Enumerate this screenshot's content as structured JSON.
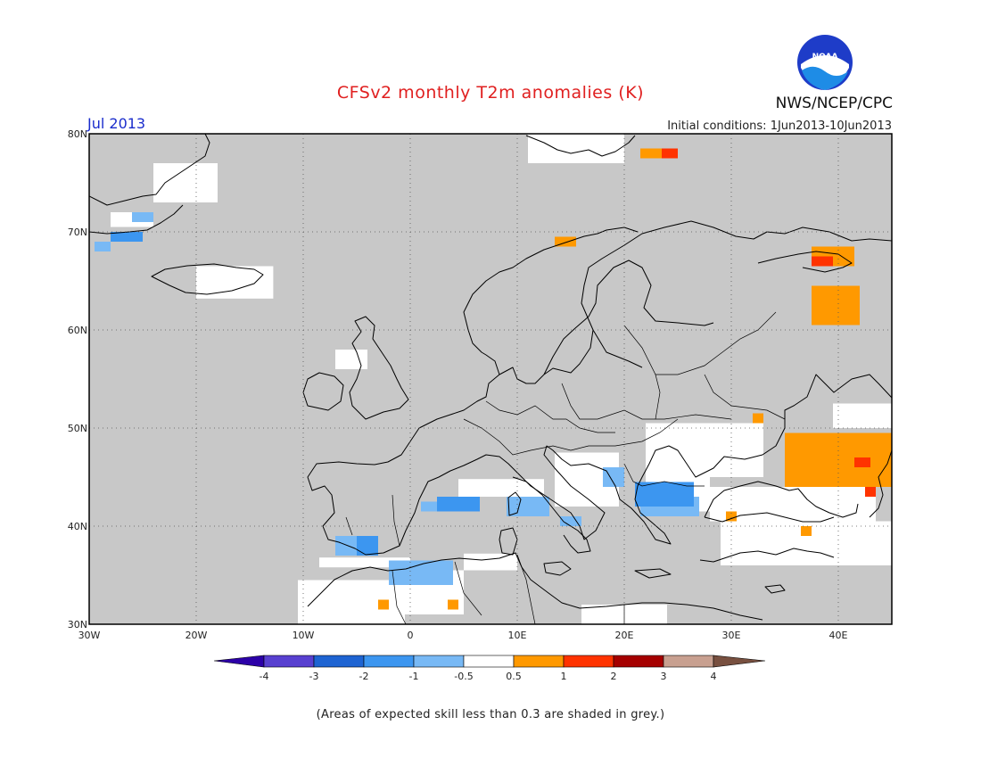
{
  "header": {
    "title": "CFSv2 monthly T2m anomalies (K)",
    "month": "Jul 2013",
    "initial_conditions": "Initial conditions: 1Jun2013-10Jun2013",
    "agency": "NWS/NCEP/CPC",
    "logo_text": "NOAA"
  },
  "map": {
    "region": "Europe",
    "lon_range": [
      -30,
      45
    ],
    "lat_range": [
      30,
      80
    ],
    "lon_labels": [
      "30W",
      "20W",
      "10W",
      "0",
      "10E",
      "20E",
      "30E",
      "40E"
    ],
    "lat_labels": [
      "30N",
      "40N",
      "50N",
      "60N",
      "70N",
      "80N"
    ],
    "background_color": "#c8c8c8",
    "anomaly_fields": [
      {
        "class": "white",
        "lon": [
          -8.5,
          0
        ],
        "lat": [
          35.8,
          36.8
        ]
      },
      {
        "class": "white",
        "lon": [
          -10.5,
          -0.5
        ],
        "lat": [
          30,
          34.5
        ]
      },
      {
        "class": "white",
        "lon": [
          -1,
          5
        ],
        "lat": [
          31,
          35.5
        ]
      },
      {
        "class": "white",
        "lon": [
          5,
          10
        ],
        "lat": [
          35.5,
          37.2
        ]
      },
      {
        "class": "white",
        "lon": [
          4.5,
          12.5
        ],
        "lat": [
          43,
          44.8
        ]
      },
      {
        "class": "white",
        "lon": [
          13.5,
          19.5
        ],
        "lat": [
          42,
          47.5
        ]
      },
      {
        "class": "white",
        "lon": [
          22,
          33
        ],
        "lat": [
          45,
          50.5
        ]
      },
      {
        "class": "white",
        "lon": [
          22,
          28
        ],
        "lat": [
          41.5,
          45
        ]
      },
      {
        "class": "white",
        "lon": [
          28,
          43.5
        ],
        "lat": [
          40.5,
          44
        ]
      },
      {
        "class": "white",
        "lon": [
          29,
          45
        ],
        "lat": [
          36,
          40.5
        ]
      },
      {
        "class": "white",
        "lon": [
          39.5,
          45
        ],
        "lat": [
          50,
          52.5
        ]
      },
      {
        "class": "white",
        "lon": [
          16,
          24
        ],
        "lat": [
          30,
          32
        ]
      },
      {
        "class": "white",
        "lon": [
          -20,
          -12.8
        ],
        "lat": [
          63.2,
          66.5
        ]
      },
      {
        "class": "white",
        "lon": [
          -24,
          -18
        ],
        "lat": [
          73,
          77
        ]
      },
      {
        "class": "white",
        "lon": [
          -28,
          -24
        ],
        "lat": [
          70.5,
          72
        ]
      },
      {
        "class": "white",
        "lon": [
          11,
          20
        ],
        "lat": [
          77,
          80
        ]
      },
      {
        "class": "white",
        "lon": [
          -7,
          -4
        ],
        "lat": [
          56,
          58
        ]
      },
      {
        "class": "blue_light",
        "lon": [
          -7,
          -5
        ],
        "lat": [
          37,
          39
        ]
      },
      {
        "class": "blue_light",
        "lon": [
          -2,
          4
        ],
        "lat": [
          34,
          36.5
        ]
      },
      {
        "class": "blue_light",
        "lon": [
          1,
          3
        ],
        "lat": [
          41.5,
          42.5
        ]
      },
      {
        "class": "blue_light",
        "lon": [
          9,
          13
        ],
        "lat": [
          41,
          43
        ]
      },
      {
        "class": "blue_light",
        "lon": [
          14,
          16
        ],
        "lat": [
          40,
          41
        ]
      },
      {
        "class": "blue_light",
        "lon": [
          18,
          20
        ],
        "lat": [
          44,
          46
        ]
      },
      {
        "class": "blue_light",
        "lon": [
          21.5,
          27
        ],
        "lat": [
          41,
          43
        ]
      },
      {
        "class": "blue_light",
        "lon": [
          -26,
          -24
        ],
        "lat": [
          71,
          72
        ]
      },
      {
        "class": "blue_light",
        "lon": [
          -29.5,
          -28
        ],
        "lat": [
          68,
          69
        ]
      },
      {
        "class": "blue_mid",
        "lon": [
          -5,
          -3
        ],
        "lat": [
          37,
          39
        ]
      },
      {
        "class": "blue_mid",
        "lon": [
          2.5,
          6.5
        ],
        "lat": [
          41.5,
          43
        ]
      },
      {
        "class": "blue_mid",
        "lon": [
          21,
          26.5
        ],
        "lat": [
          42,
          44.5
        ]
      },
      {
        "class": "blue_mid",
        "lon": [
          -28,
          -25
        ],
        "lat": [
          69,
          70
        ]
      },
      {
        "class": "orange",
        "lon": [
          35,
          45
        ],
        "lat": [
          44,
          49.5
        ]
      },
      {
        "class": "orange",
        "lon": [
          37.5,
          42
        ],
        "lat": [
          60.5,
          64.5
        ]
      },
      {
        "class": "orange",
        "lon": [
          37.5,
          41.5
        ],
        "lat": [
          66.5,
          68.5
        ]
      },
      {
        "class": "orange",
        "lon": [
          13.5,
          15.5
        ],
        "lat": [
          68.5,
          69.5
        ]
      },
      {
        "class": "orange",
        "lon": [
          21.5,
          25
        ],
        "lat": [
          77.5,
          78.5
        ]
      },
      {
        "class": "orange",
        "lon": [
          32,
          33
        ],
        "lat": [
          50.5,
          51.5
        ]
      },
      {
        "class": "orange",
        "lon": [
          29.5,
          30.5
        ],
        "lat": [
          40.5,
          41.5
        ]
      },
      {
        "class": "orange",
        "lon": [
          36.5,
          37.5
        ],
        "lat": [
          39,
          40
        ]
      },
      {
        "class": "orange",
        "lon": [
          -3,
          -2
        ],
        "lat": [
          31.5,
          32.5
        ]
      },
      {
        "class": "orange",
        "lon": [
          3.5,
          4.5
        ],
        "lat": [
          31.5,
          32.5
        ]
      },
      {
        "class": "red_orange",
        "lon": [
          37.5,
          39.5
        ],
        "lat": [
          66.5,
          67.5
        ]
      },
      {
        "class": "red_orange",
        "lon": [
          41.5,
          43
        ],
        "lat": [
          46,
          47
        ]
      },
      {
        "class": "red_orange",
        "lon": [
          42.5,
          43.5
        ],
        "lat": [
          43,
          44
        ]
      },
      {
        "class": "red_orange",
        "lon": [
          23.5,
          25
        ],
        "lat": [
          77.5,
          78.5
        ]
      }
    ]
  },
  "legend": {
    "labels": [
      "-4",
      "-3",
      "-2",
      "-1",
      "-0.5",
      "0.5",
      "1",
      "2",
      "3",
      "4"
    ],
    "colors": {
      "lt_-4": "#2c00a8",
      "-4_-3": "#5840d0",
      "-3_-2": "#1e64d2",
      "-2_-1": "#3c96f0",
      "-1_-0.5": "#78b9f5",
      "-0.5_0.5": "#ffffff",
      "0.5_1": "#ff9900",
      "1_2": "#ff3300",
      "2_3": "#a50000",
      "3_4": "#c8a090",
      "gt_4": "#785040"
    }
  },
  "footnote": "(Areas of expected skill less than 0.3 are shaded in grey.)"
}
